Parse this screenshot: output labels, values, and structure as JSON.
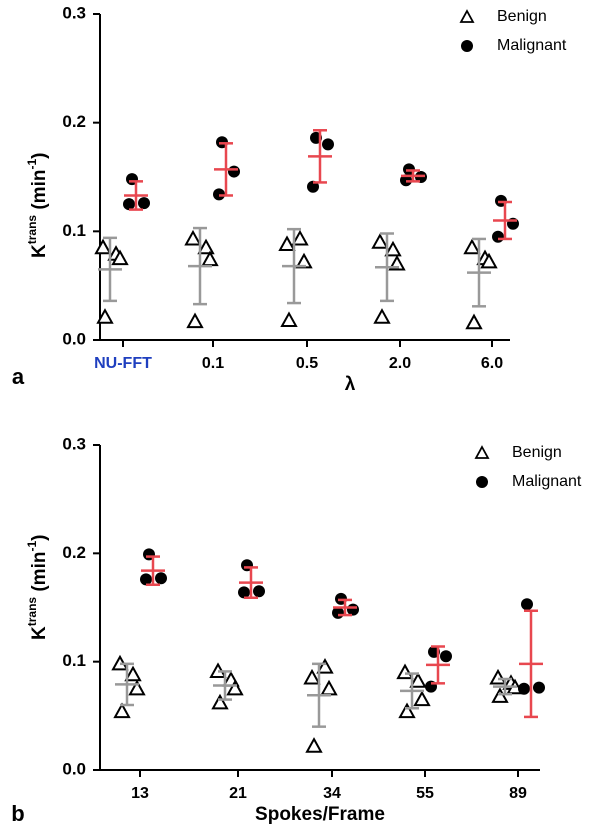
{
  "chart_data": [
    {
      "type": "strip",
      "panel_label": "a",
      "xlabel": "λ",
      "ylabel": [
        "K",
        "trans",
        " (min",
        "-1",
        ")"
      ],
      "categories": [
        "NU-FFT",
        "0.1",
        "0.5",
        "2.0",
        "6.0"
      ],
      "category_colors": [
        "#1f3fbf",
        "#000000",
        "#000000",
        "#000000",
        "#000000"
      ],
      "ylim": [
        0,
        0.3
      ],
      "yticks": [
        {
          "value": 0,
          "label": "0.0"
        },
        0.1,
        0.2,
        0.3
      ],
      "series": [
        {
          "name": "Benign",
          "marker": "triangle",
          "color": "#000000",
          "errorbar_color": "#999999",
          "values": [
            [
              0.085,
              0.079,
              0.075,
              0.021
            ],
            [
              0.093,
              0.085,
              0.074,
              0.017
            ],
            [
              0.088,
              0.093,
              0.072,
              0.018
            ],
            [
              0.09,
              0.083,
              0.07,
              0.021
            ],
            [
              0.085,
              0.075,
              0.072,
              0.016
            ]
          ],
          "mean": [
            0.065,
            0.068,
            0.068,
            0.067,
            0.062
          ],
          "sd": [
            0.029,
            0.035,
            0.034,
            0.031,
            0.031
          ]
        },
        {
          "name": "Malignant",
          "marker": "circle",
          "color": "#000000",
          "errorbar_color": "#e8474f",
          "values": [
            [
              0.148,
              0.126,
              0.125
            ],
            [
              0.182,
              0.155,
              0.134
            ],
            [
              0.186,
              0.18,
              0.141
            ],
            [
              0.157,
              0.15,
              0.147
            ],
            [
              0.128,
              0.107,
              0.095
            ]
          ],
          "mean": [
            0.133,
            0.157,
            0.169,
            0.151,
            0.11
          ],
          "sd": [
            0.013,
            0.024,
            0.024,
            0.005,
            0.017
          ]
        }
      ]
    },
    {
      "type": "strip",
      "panel_label": "b",
      "xlabel": "Spokes/Frame",
      "ylabel": [
        "K",
        "trans",
        " (min",
        "-1",
        ")"
      ],
      "categories": [
        "13",
        "21",
        "34",
        "55",
        "89"
      ],
      "category_colors": [
        "#000000",
        "#000000",
        "#000000",
        "#000000",
        "#000000"
      ],
      "ylim": [
        0,
        0.3
      ],
      "yticks": [
        {
          "value": 0,
          "label": "0.0"
        },
        0.1,
        0.2,
        0.3
      ],
      "series": [
        {
          "name": "Benign",
          "marker": "triangle",
          "color": "#000000",
          "errorbar_color": "#999999",
          "values": [
            [
              0.098,
              0.088,
              0.075,
              0.054
            ],
            [
              0.091,
              0.083,
              0.075,
              0.062
            ],
            [
              0.085,
              0.095,
              0.075,
              0.022
            ],
            [
              0.09,
              0.082,
              0.065,
              0.054
            ],
            [
              0.085,
              0.08,
              0.076,
              0.068
            ]
          ],
          "mean": [
            0.079,
            0.078,
            0.069,
            0.073,
            0.077
          ],
          "sd": [
            0.019,
            0.013,
            0.029,
            0.016,
            0.007
          ]
        },
        {
          "name": "Malignant",
          "marker": "circle",
          "color": "#000000",
          "errorbar_color": "#e8474f",
          "values": [
            [
              0.199,
              0.177,
              0.176
            ],
            [
              0.189,
              0.165,
              0.164
            ],
            [
              0.158,
              0.148,
              0.145
            ],
            [
              0.109,
              0.105,
              0.077
            ],
            [
              0.153,
              0.076,
              0.075
            ]
          ],
          "mean": [
            0.184,
            0.173,
            0.15,
            0.097,
            0.098
          ],
          "sd": [
            0.013,
            0.014,
            0.007,
            0.017,
            0.049
          ]
        }
      ]
    }
  ]
}
